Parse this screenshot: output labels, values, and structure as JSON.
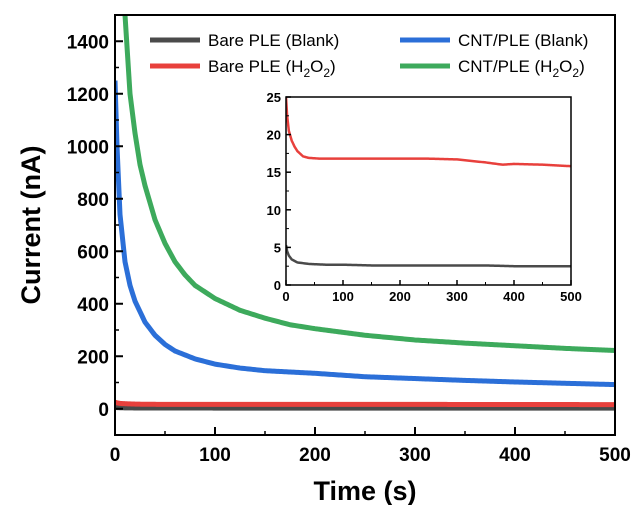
{
  "chart_data": [
    {
      "type": "line",
      "title": "",
      "xlabel": "Time (s)",
      "ylabel": "Current (nA)",
      "xlim": [
        0,
        500
      ],
      "ylim": [
        -100,
        1500
      ],
      "xticks": [
        0,
        100,
        200,
        300,
        400,
        500
      ],
      "yticks": [
        0,
        200,
        400,
        600,
        800,
        1000,
        1200,
        1400
      ],
      "grid": false,
      "legend_position": "top",
      "series": [
        {
          "name": "Bare PLE (Blank)",
          "color": "#4a4a4a",
          "x": [
            0,
            2,
            5,
            10,
            20,
            40,
            70,
            100,
            150,
            200,
            300,
            400,
            500
          ],
          "y": [
            5,
            4.5,
            4,
            3.5,
            3,
            2.8,
            2.7,
            2.6,
            2.6,
            2.6,
            2.6,
            2.5,
            2.5
          ]
        },
        {
          "name": "Bare PLE (H2O2)",
          "color": "#e8403c",
          "x": [
            0,
            2,
            5,
            10,
            15,
            20,
            30,
            40,
            60,
            100,
            150,
            200,
            250,
            300,
            350,
            400,
            450,
            500
          ],
          "y": [
            25,
            22.5,
            20.5,
            19.2,
            18.4,
            17.8,
            17.1,
            16.9,
            16.8,
            16.8,
            16.8,
            16.8,
            16.8,
            16.7,
            16.3,
            16.1,
            16.0,
            15.8
          ]
        },
        {
          "name": "CNT/PLE (Blank)",
          "color": "#2b6fd8",
          "x": [
            0,
            2,
            5,
            10,
            15,
            20,
            30,
            40,
            50,
            60,
            80,
            100,
            125,
            150,
            200,
            250,
            300,
            350,
            400,
            450,
            500
          ],
          "y": [
            1250,
            1000,
            740,
            560,
            470,
            410,
            330,
            280,
            245,
            220,
            190,
            170,
            155,
            145,
            135,
            122,
            115,
            108,
            102,
            97,
            92
          ]
        },
        {
          "name": "CNT/PLE (H2O2)",
          "color": "#3daa5c",
          "x": [
            10,
            15,
            20,
            25,
            30,
            40,
            50,
            60,
            70,
            80,
            100,
            125,
            150,
            175,
            200,
            250,
            300,
            350,
            400,
            450,
            500
          ],
          "y": [
            1500,
            1200,
            1050,
            930,
            850,
            720,
            630,
            560,
            510,
            470,
            420,
            375,
            345,
            320,
            305,
            280,
            262,
            250,
            240,
            230,
            222
          ]
        }
      ]
    },
    {
      "type": "line",
      "title": "",
      "xlabel": "",
      "ylabel": "",
      "xlim": [
        0,
        500
      ],
      "ylim": [
        0,
        25
      ],
      "xticks": [
        0,
        100,
        200,
        300,
        400,
        500
      ],
      "yticks": [
        0,
        5,
        10,
        15,
        20,
        25
      ],
      "grid": false,
      "series": [
        {
          "color": "#4a4a4a",
          "x": [
            0,
            2,
            5,
            10,
            20,
            30,
            40,
            70,
            100,
            150,
            200,
            250,
            300,
            350,
            400,
            450,
            500
          ],
          "y": [
            5.3,
            4.5,
            3.9,
            3.4,
            3.0,
            2.9,
            2.8,
            2.7,
            2.7,
            2.6,
            2.6,
            2.6,
            2.6,
            2.6,
            2.5,
            2.5,
            2.5
          ]
        },
        {
          "color": "#e8403c",
          "x": [
            0,
            2,
            5,
            10,
            15,
            20,
            30,
            40,
            60,
            100,
            150,
            200,
            250,
            300,
            350,
            380,
            400,
            450,
            500
          ],
          "y": [
            25,
            22.5,
            20.5,
            19.2,
            18.4,
            17.8,
            17.1,
            16.9,
            16.8,
            16.8,
            16.8,
            16.8,
            16.8,
            16.7,
            16.3,
            16.0,
            16.1,
            16.0,
            15.8
          ]
        }
      ]
    }
  ],
  "legend": [
    {
      "main": "Bare PLE (Blank)",
      "color": "#4a4a4a"
    },
    {
      "main": "CNT/PLE (Blank)",
      "color": "#2b6fd8"
    },
    {
      "main": "Bare PLE (H",
      "sub": "2",
      "mid": "O",
      "sub2": "2",
      "tail": ")",
      "color": "#e8403c"
    },
    {
      "main": "CNT/PLE (H",
      "sub": "2",
      "mid": "O",
      "sub2": "2",
      "tail": ")",
      "color": "#3daa5c"
    }
  ]
}
